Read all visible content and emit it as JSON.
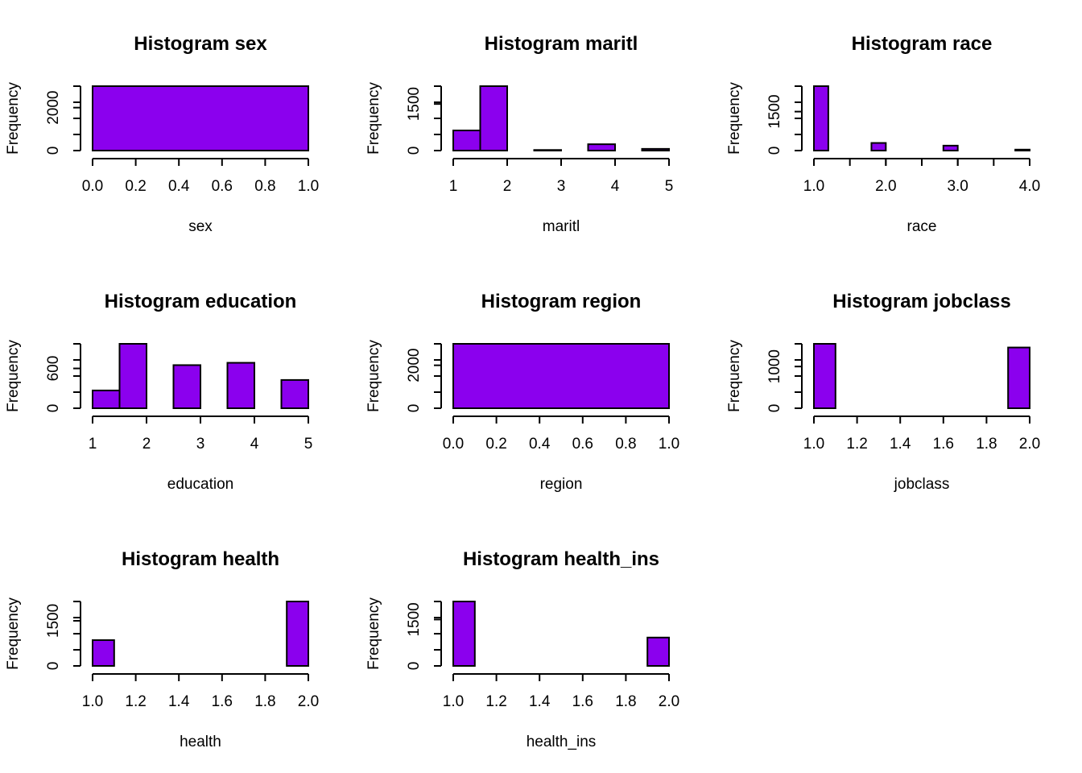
{
  "fill_color": "#8b00ee",
  "stroke_color": "#000000",
  "chart_data": [
    {
      "type": "bar",
      "title": "Histogram sex",
      "xlabel": "sex",
      "ylabel": "Frequency",
      "xlim": [
        0,
        1
      ],
      "xticks": [
        "0.0",
        "0.2",
        "0.4",
        "0.6",
        "0.8",
        "1.0"
      ],
      "ylim": [
        0,
        3000
      ],
      "yticks": [
        "0",
        "2000"
      ],
      "bins": [
        {
          "x0": 0,
          "x1": 1,
          "count": 3000
        }
      ]
    },
    {
      "type": "bar",
      "title": "Histogram maritl",
      "xlabel": "maritl",
      "ylabel": "Frequency",
      "xlim": [
        1,
        5
      ],
      "xticks": [
        "1",
        "2",
        "3",
        "4",
        "5"
      ],
      "ylim": [
        0,
        2074
      ],
      "yticks": [
        "0",
        "1500"
      ],
      "bins": [
        {
          "x0": 1.0,
          "x1": 1.5,
          "count": 648
        },
        {
          "x0": 1.5,
          "x1": 2.0,
          "count": 2074
        },
        {
          "x0": 2.0,
          "x1": 2.5,
          "count": 0
        },
        {
          "x0": 2.5,
          "x1": 3.0,
          "count": 19
        },
        {
          "x0": 3.0,
          "x1": 3.5,
          "count": 0
        },
        {
          "x0": 3.5,
          "x1": 4.0,
          "count": 204
        },
        {
          "x0": 4.0,
          "x1": 4.5,
          "count": 0
        },
        {
          "x0": 4.5,
          "x1": 5.0,
          "count": 55
        }
      ]
    },
    {
      "type": "bar",
      "title": "Histogram race",
      "xlabel": "race",
      "ylabel": "Frequency",
      "xlim": [
        1,
        4
      ],
      "xticks": [
        "1.0",
        "2.0",
        "3.0",
        "4.0"
      ],
      "ylim": [
        0,
        2480
      ],
      "yticks": [
        "0",
        "1500"
      ],
      "bins": [
        {
          "x0": 1.0,
          "x1": 1.2,
          "count": 2480
        },
        {
          "x0": 1.2,
          "x1": 1.4,
          "count": 0
        },
        {
          "x0": 1.4,
          "x1": 1.6,
          "count": 0
        },
        {
          "x0": 1.6,
          "x1": 1.8,
          "count": 0
        },
        {
          "x0": 1.8,
          "x1": 2.0,
          "count": 293
        },
        {
          "x0": 2.0,
          "x1": 2.2,
          "count": 0
        },
        {
          "x0": 2.2,
          "x1": 2.4,
          "count": 0
        },
        {
          "x0": 2.4,
          "x1": 2.6,
          "count": 0
        },
        {
          "x0": 2.6,
          "x1": 2.8,
          "count": 0
        },
        {
          "x0": 2.8,
          "x1": 3.0,
          "count": 190
        },
        {
          "x0": 3.0,
          "x1": 3.2,
          "count": 0
        },
        {
          "x0": 3.2,
          "x1": 3.4,
          "count": 0
        },
        {
          "x0": 3.4,
          "x1": 3.6,
          "count": 0
        },
        {
          "x0": 3.6,
          "x1": 3.8,
          "count": 0
        },
        {
          "x0": 3.8,
          "x1": 4.0,
          "count": 37
        }
      ]
    },
    {
      "type": "bar",
      "title": "Histogram education",
      "xlabel": "education",
      "ylabel": "Frequency",
      "xlim": [
        1,
        5
      ],
      "xticks": [
        "1",
        "2",
        "3",
        "4",
        "5"
      ],
      "ylim": [
        0,
        971
      ],
      "yticks": [
        "0",
        "600"
      ],
      "bins": [
        {
          "x0": 1.0,
          "x1": 1.5,
          "count": 268
        },
        {
          "x0": 1.5,
          "x1": 2.0,
          "count": 971
        },
        {
          "x0": 2.0,
          "x1": 2.5,
          "count": 0
        },
        {
          "x0": 2.5,
          "x1": 3.0,
          "count": 650
        },
        {
          "x0": 3.0,
          "x1": 3.5,
          "count": 0
        },
        {
          "x0": 3.5,
          "x1": 4.0,
          "count": 685
        },
        {
          "x0": 4.0,
          "x1": 4.5,
          "count": 0
        },
        {
          "x0": 4.5,
          "x1": 5.0,
          "count": 426
        }
      ]
    },
    {
      "type": "bar",
      "title": "Histogram region",
      "xlabel": "region",
      "ylabel": "Frequency",
      "xlim": [
        0,
        1
      ],
      "xticks": [
        "0.0",
        "0.2",
        "0.4",
        "0.6",
        "0.8",
        "1.0"
      ],
      "ylim": [
        0,
        3000
      ],
      "yticks": [
        "0",
        "2000"
      ],
      "bins": [
        {
          "x0": 0,
          "x1": 1,
          "count": 3000
        }
      ]
    },
    {
      "type": "bar",
      "title": "Histogram jobclass",
      "xlabel": "jobclass",
      "ylabel": "Frequency",
      "xlim": [
        1,
        2
      ],
      "xticks": [
        "1.0",
        "1.2",
        "1.4",
        "1.6",
        "1.8",
        "2.0"
      ],
      "ylim": [
        0,
        1544
      ],
      "yticks": [
        "0",
        "1000"
      ],
      "bins": [
        {
          "x0": 1.0,
          "x1": 1.1,
          "count": 1544
        },
        {
          "x0": 1.1,
          "x1": 1.2,
          "count": 0
        },
        {
          "x0": 1.2,
          "x1": 1.3,
          "count": 0
        },
        {
          "x0": 1.3,
          "x1": 1.4,
          "count": 0
        },
        {
          "x0": 1.4,
          "x1": 1.5,
          "count": 0
        },
        {
          "x0": 1.5,
          "x1": 1.6,
          "count": 0
        },
        {
          "x0": 1.6,
          "x1": 1.7,
          "count": 0
        },
        {
          "x0": 1.7,
          "x1": 1.8,
          "count": 0
        },
        {
          "x0": 1.8,
          "x1": 1.9,
          "count": 0
        },
        {
          "x0": 1.9,
          "x1": 2.0,
          "count": 1456
        }
      ]
    },
    {
      "type": "bar",
      "title": "Histogram health",
      "xlabel": "health",
      "ylabel": "Frequency",
      "xlim": [
        1,
        2
      ],
      "xticks": [
        "1.0",
        "1.2",
        "1.4",
        "1.6",
        "1.8",
        "2.0"
      ],
      "ylim": [
        0,
        2142
      ],
      "yticks": [
        "0",
        "1500"
      ],
      "bins": [
        {
          "x0": 1.0,
          "x1": 1.1,
          "count": 858
        },
        {
          "x0": 1.1,
          "x1": 1.2,
          "count": 0
        },
        {
          "x0": 1.2,
          "x1": 1.3,
          "count": 0
        },
        {
          "x0": 1.3,
          "x1": 1.4,
          "count": 0
        },
        {
          "x0": 1.4,
          "x1": 1.5,
          "count": 0
        },
        {
          "x0": 1.5,
          "x1": 1.6,
          "count": 0
        },
        {
          "x0": 1.6,
          "x1": 1.7,
          "count": 0
        },
        {
          "x0": 1.7,
          "x1": 1.8,
          "count": 0
        },
        {
          "x0": 1.8,
          "x1": 1.9,
          "count": 0
        },
        {
          "x0": 1.9,
          "x1": 2.0,
          "count": 2142
        }
      ]
    },
    {
      "type": "bar",
      "title": "Histogram health_ins",
      "xlabel": "health_ins",
      "ylabel": "Frequency",
      "xlim": [
        1,
        2
      ],
      "xticks": [
        "1.0",
        "1.2",
        "1.4",
        "1.6",
        "1.8",
        "2.0"
      ],
      "ylim": [
        0,
        2083
      ],
      "yticks": [
        "0",
        "1500"
      ],
      "bins": [
        {
          "x0": 1.0,
          "x1": 1.1,
          "count": 2083
        },
        {
          "x0": 1.1,
          "x1": 1.2,
          "count": 0
        },
        {
          "x0": 1.2,
          "x1": 1.3,
          "count": 0
        },
        {
          "x0": 1.3,
          "x1": 1.4,
          "count": 0
        },
        {
          "x0": 1.4,
          "x1": 1.5,
          "count": 0
        },
        {
          "x0": 1.5,
          "x1": 1.6,
          "count": 0
        },
        {
          "x0": 1.6,
          "x1": 1.7,
          "count": 0
        },
        {
          "x0": 1.7,
          "x1": 1.8,
          "count": 0
        },
        {
          "x0": 1.8,
          "x1": 1.9,
          "count": 0
        },
        {
          "x0": 1.9,
          "x1": 2.0,
          "count": 917
        }
      ]
    }
  ]
}
